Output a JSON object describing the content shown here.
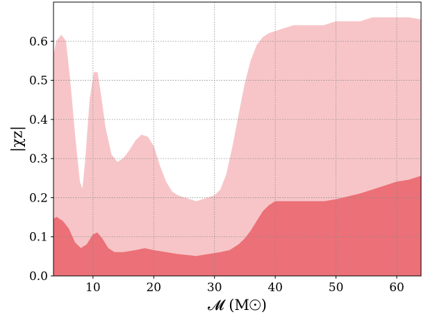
{
  "chart_data": {
    "type": "area",
    "xlabel": "𝓜 (M☉)",
    "ylabel": "|χz|",
    "xlim": [
      3.5,
      64
    ],
    "ylim": [
      0,
      0.7
    ],
    "xticks": [
      10,
      20,
      30,
      40,
      50,
      60
    ],
    "xtick_labels": [
      "10",
      "20",
      "30",
      "40",
      "50",
      "60"
    ],
    "yticks": [
      0.0,
      0.1,
      0.2,
      0.3,
      0.4,
      0.5,
      0.6
    ],
    "ytick_labels": [
      "0.0",
      "0.1",
      "0.2",
      "0.3",
      "0.4",
      "0.5",
      "0.6"
    ],
    "grid": true,
    "series": [
      {
        "color": "#f7c5c8",
        "x": [
          3.5,
          4.0,
          4.8,
          5.5,
          6.2,
          7.0,
          7.8,
          8.3,
          8.8,
          9.5,
          10.2,
          10.7,
          11.2,
          12.0,
          13.0,
          14.0,
          15.0,
          16.0,
          17.0,
          18.0,
          19.0,
          20.0,
          21.0,
          22.0,
          23.0,
          24.0,
          25.0,
          26.0,
          27.0,
          28.0,
          29.0,
          30.0,
          31.0,
          32.0,
          33.0,
          34.0,
          35.0,
          36.0,
          37.0,
          38.0,
          39.0,
          40.0,
          41.0,
          42.0,
          43.0,
          45.0,
          48.0,
          50.0,
          54.0,
          56.0,
          60.0,
          62.0,
          64.0
        ],
        "values": [
          0.56,
          0.6,
          0.615,
          0.6,
          0.5,
          0.36,
          0.24,
          0.22,
          0.3,
          0.45,
          0.52,
          0.52,
          0.47,
          0.38,
          0.31,
          0.29,
          0.3,
          0.32,
          0.345,
          0.36,
          0.355,
          0.33,
          0.28,
          0.24,
          0.215,
          0.205,
          0.2,
          0.195,
          0.19,
          0.195,
          0.2,
          0.205,
          0.22,
          0.26,
          0.33,
          0.41,
          0.49,
          0.55,
          0.59,
          0.61,
          0.62,
          0.625,
          0.63,
          0.635,
          0.64,
          0.64,
          0.64,
          0.65,
          0.65,
          0.66,
          0.66,
          0.66,
          0.655
        ]
      },
      {
        "color": "#ec7077",
        "x": [
          3.5,
          4.0,
          5.0,
          6.0,
          7.0,
          8.0,
          9.0,
          10.0,
          10.7,
          11.5,
          12.5,
          13.5,
          15.0,
          17.0,
          18.5,
          20.0,
          22.0,
          24.0,
          27.0,
          29.0,
          31.0,
          32.5,
          34.0,
          35.0,
          36.0,
          37.0,
          38.0,
          39.0,
          40.0,
          42.0,
          48.0,
          50.0,
          54.0,
          58.0,
          60.0,
          62.0,
          64.0
        ],
        "values": [
          0.145,
          0.15,
          0.14,
          0.12,
          0.085,
          0.07,
          0.08,
          0.105,
          0.11,
          0.095,
          0.07,
          0.06,
          0.06,
          0.065,
          0.07,
          0.065,
          0.06,
          0.055,
          0.05,
          0.055,
          0.06,
          0.065,
          0.08,
          0.095,
          0.115,
          0.14,
          0.165,
          0.18,
          0.19,
          0.19,
          0.19,
          0.195,
          0.21,
          0.23,
          0.24,
          0.245,
          0.255
        ]
      }
    ]
  }
}
